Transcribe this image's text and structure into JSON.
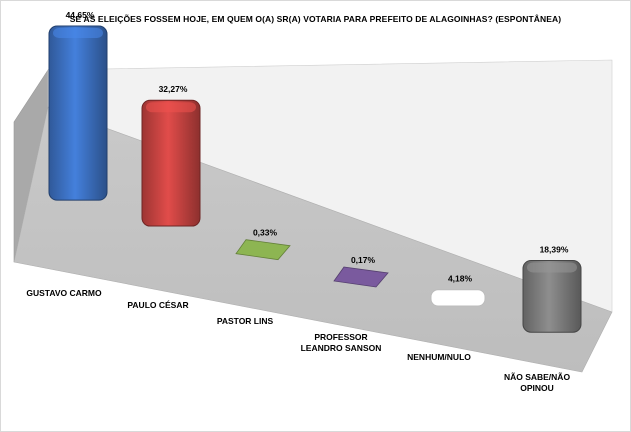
{
  "chart_data": {
    "type": "bar",
    "title": "SE AS ELEIÇÕES FOSSEM HOJE, EM QUEM O(A) SR(A) VOTARIA PARA PREFEITO DE ALAGOINHAS? (ESPONTÂNEA)",
    "categories": [
      [
        "GUSTAVO CARMO"
      ],
      [
        "PAULO CÉSAR"
      ],
      [
        "PASTOR LINS"
      ],
      [
        "PROFESSOR",
        "LEANDRO SANSON"
      ],
      [
        "NENHUM/NULO"
      ],
      [
        "NÃO SABE/NÃO",
        "OPINOU"
      ]
    ],
    "values": [
      44.65,
      32.27,
      0.33,
      0.17,
      4.18,
      18.39
    ],
    "value_labels": [
      "44,65%",
      "32,27%",
      "0,33%",
      "0,17%",
      "4,18%",
      "18,39%"
    ],
    "colors": [
      "#3d72c4",
      "#c94442",
      "#8db552",
      "#7a5a9e",
      "#ffffff",
      "#7f7f7f"
    ],
    "ylim": [
      0,
      50
    ],
    "grid": false,
    "legend": "none",
    "style": "3d-perspective"
  }
}
